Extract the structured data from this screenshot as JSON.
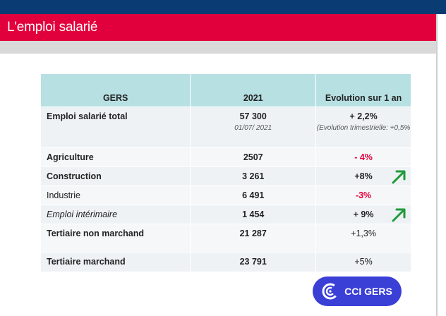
{
  "header": {
    "title": "L'emploi salarié"
  },
  "table": {
    "headers": [
      "GERS",
      "2021",
      "Evolution sur 1 an"
    ],
    "rows": [
      {
        "label": "Emploi salarié total",
        "value": "57 300",
        "value_note": "01/07/ 2021",
        "evolution": "+ 2,2%",
        "evolution_note": "(Evolution trimestrielle: +0,5%"
      },
      {
        "label": "Agriculture",
        "value": "2507",
        "evolution": "- 4%"
      },
      {
        "label": "Construction",
        "value": "3 261",
        "evolution": "+8%"
      },
      {
        "label": "Industrie",
        "value": "6 491",
        "evolution": "-3%"
      },
      {
        "label": "Emploi intérimaire",
        "value": "1 454",
        "evolution": "+ 9%"
      },
      {
        "label": "Tertiaire non marchand",
        "value": "21 287",
        "evolution": "+1,3%"
      },
      {
        "label": "Tertiaire marchand",
        "value": "23 791",
        "evolution": "+5%"
      }
    ]
  },
  "badge": {
    "label": "CCI GERS"
  },
  "colors": {
    "brand_red": "#e2003c",
    "brand_navy": "#0a3b72",
    "header_teal": "#b7e0e3",
    "up_arrow": "#1f9a3a",
    "badge_blue": "#3a3fd6"
  },
  "icons": {
    "up_arrow": "arrow-up-right-icon",
    "logo": "cci-logo-icon"
  }
}
